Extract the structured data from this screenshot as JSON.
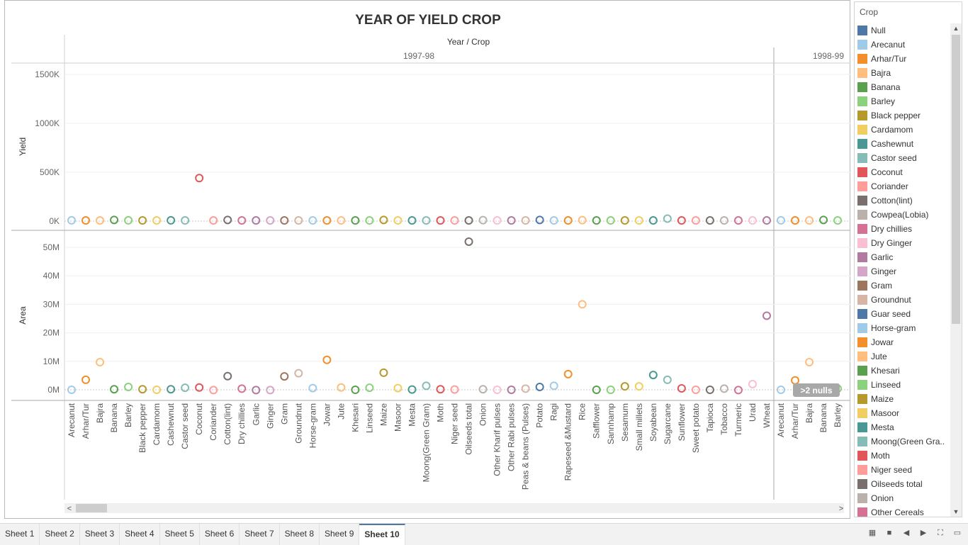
{
  "title": "YEAR OF YIELD CROP",
  "header_label": "Year / Crop",
  "years": [
    {
      "label": "1997-98",
      "crops": [
        "Arecanut",
        "Arhar/Tur",
        "Bajra",
        "Banana",
        "Barley",
        "Black pepper",
        "Cardamom",
        "Cashewnut",
        "Castor seed",
        "Coconut",
        "Coriander",
        "Cotton(lint)",
        "Dry chillies",
        "Garlic",
        "Ginger",
        "Gram",
        "Groundnut",
        "Horse-gram",
        "Jowar",
        "Jute",
        "Khesari",
        "Linseed",
        "Maize",
        "Masoor",
        "Mesta",
        "Moong(Green Gram)",
        "Moth",
        "Niger seed",
        "Oilseeds total",
        "Onion",
        "Other Kharif pulses",
        "Other Rabi pulses",
        "Peas & beans (Pulses)",
        "Potato",
        "Ragi",
        "Rapeseed &Mustard",
        "Rice",
        "Safflower",
        "Sannhamp",
        "Sesamum",
        "Small millets",
        "Soyabean",
        "Sugarcane",
        "Sunflower",
        "Sweet potato",
        "Tapioca",
        "Tobacco",
        "Turmeric",
        "Urad",
        "Wheat"
      ]
    },
    {
      "label": "1998-99",
      "crops": [
        "Arecanut",
        "Arhar/Tur",
        "Bajra",
        "Banana",
        "Barley"
      ]
    }
  ],
  "null_badge": ">2 nulls",
  "chart_data": [
    {
      "type": "scatter",
      "ylabel": "Yield",
      "yticks": [
        "1500K",
        "1000K",
        "500K",
        "0K"
      ],
      "ylim": [
        0,
        1600000
      ],
      "values_1997": [
        8000,
        7000,
        7000,
        12000,
        8000,
        7000,
        7000,
        8000,
        7000,
        440000,
        7000,
        12000,
        7000,
        7000,
        7000,
        7000,
        7000,
        7000,
        7000,
        7000,
        7000,
        7000,
        12000,
        7000,
        7000,
        7000,
        7000,
        7000,
        7000,
        10000,
        7000,
        7000,
        7000,
        12000,
        7000,
        7000,
        10000,
        7000,
        7000,
        7000,
        7000,
        7000,
        25000,
        7000,
        7000,
        7000,
        7000,
        7000,
        7000,
        7000
      ],
      "values_1998": [
        8000,
        7000,
        7000,
        12000,
        7000
      ]
    },
    {
      "type": "scatter",
      "ylabel": "Area",
      "yticks": [
        "50M",
        "40M",
        "30M",
        "20M",
        "10M",
        "0M"
      ],
      "ylim": [
        -3000000,
        55000000
      ],
      "values_1997": [
        0,
        3500000,
        9700000,
        200000,
        1000000,
        200000,
        0,
        200000,
        700000,
        800000,
        -100000,
        4800000,
        400000,
        -100000,
        -100000,
        4700000,
        5800000,
        600000,
        10500000,
        800000,
        0,
        700000,
        6000000,
        600000,
        100000,
        1400000,
        200000,
        100000,
        52000000,
        200000,
        0,
        0,
        400000,
        1000000,
        1400000,
        5500000,
        30000000,
        0,
        0,
        1200000,
        1200000,
        5200000,
        3500000,
        500000,
        0,
        0,
        400000,
        -100000,
        2000000,
        26000000
      ],
      "values_1998": [
        0,
        3300000,
        9700000,
        700000,
        400000
      ]
    }
  ],
  "colors": {
    "Null": "#4e79a7",
    "Arecanut": "#a0cbe8",
    "Arhar/Tur": "#f28e2b",
    "Bajra": "#ffbe7d",
    "Banana": "#59a14f",
    "Barley": "#8cd17d",
    "Black pepper": "#b6992d",
    "Cardamom": "#f1ce63",
    "Cashewnut": "#499894",
    "Castor seed": "#86bcb6",
    "Coconut": "#e15759",
    "Coriander": "#ff9d9a",
    "Cotton(lint)": "#79706e",
    "Cowpea(Lobia)": "#bab0ac",
    "Dry chillies": "#d37295",
    "Dry Ginger": "#fabfd2",
    "Garlic": "#b07aa1",
    "Ginger": "#d4a6c8",
    "Gram": "#9d7660",
    "Groundnut": "#d7b5a6",
    "Guar seed": "#4e79a7",
    "Horse-gram": "#a0cbe8",
    "Jowar": "#f28e2b",
    "Jute": "#ffbe7d",
    "Khesari": "#59a14f",
    "Linseed": "#8cd17d",
    "Maize": "#b6992d",
    "Masoor": "#f1ce63",
    "Mesta": "#499894",
    "Moong(Green Gram)": "#86bcb6",
    "Moth": "#e15759",
    "Niger seed": "#ff9d9a",
    "Oilseeds total": "#79706e",
    "Onion": "#bab0ac",
    "Other Cereals": "#d37295",
    "Other Kharif pulses": "#fabfd2",
    "Other Rabi pulses": "#b07aa1",
    "Peas & beans (Pulses)": "#d7b5a6",
    "Potato": "#4e79a7",
    "Ragi": "#a0cbe8",
    "Rapeseed &Mustard": "#f28e2b",
    "Rice": "#ffbe7d",
    "Safflower": "#59a14f",
    "Sannhamp": "#8cd17d",
    "Sesamum": "#b6992d",
    "Small millets": "#f1ce63",
    "Soyabean": "#499894",
    "Sugarcane": "#86bcb6",
    "Sunflower": "#e15759",
    "Sweet potato": "#ff9d9a",
    "Tapioca": "#79706e",
    "Tobacco": "#bab0ac",
    "Turmeric": "#d37295",
    "Urad": "#fabfd2",
    "Wheat": "#b07aa1"
  },
  "legend": {
    "title": "Crop",
    "items": [
      {
        "label": "Null",
        "color": "#4e79a7"
      },
      {
        "label": "Arecanut",
        "color": "#a0cbe8"
      },
      {
        "label": "Arhar/Tur",
        "color": "#f28e2b"
      },
      {
        "label": "Bajra",
        "color": "#ffbe7d"
      },
      {
        "label": "Banana",
        "color": "#59a14f"
      },
      {
        "label": "Barley",
        "color": "#8cd17d"
      },
      {
        "label": "Black pepper",
        "color": "#b6992d"
      },
      {
        "label": "Cardamom",
        "color": "#f1ce63"
      },
      {
        "label": "Cashewnut",
        "color": "#499894"
      },
      {
        "label": "Castor seed",
        "color": "#86bcb6"
      },
      {
        "label": "Coconut",
        "color": "#e15759"
      },
      {
        "label": "Coriander",
        "color": "#ff9d9a"
      },
      {
        "label": "Cotton(lint)",
        "color": "#79706e"
      },
      {
        "label": "Cowpea(Lobia)",
        "color": "#bab0ac"
      },
      {
        "label": "Dry chillies",
        "color": "#d37295"
      },
      {
        "label": "Dry Ginger",
        "color": "#fabfd2"
      },
      {
        "label": "Garlic",
        "color": "#b07aa1"
      },
      {
        "label": "Ginger",
        "color": "#d4a6c8"
      },
      {
        "label": "Gram",
        "color": "#9d7660"
      },
      {
        "label": "Groundnut",
        "color": "#d7b5a6"
      },
      {
        "label": "Guar seed",
        "color": "#4e79a7"
      },
      {
        "label": "Horse-gram",
        "color": "#a0cbe8"
      },
      {
        "label": "Jowar",
        "color": "#f28e2b"
      },
      {
        "label": "Jute",
        "color": "#ffbe7d"
      },
      {
        "label": "Khesari",
        "color": "#59a14f"
      },
      {
        "label": "Linseed",
        "color": "#8cd17d"
      },
      {
        "label": "Maize",
        "color": "#b6992d"
      },
      {
        "label": "Masoor",
        "color": "#f1ce63"
      },
      {
        "label": "Mesta",
        "color": "#499894"
      },
      {
        "label": "Moong(Green Gra..",
        "color": "#86bcb6"
      },
      {
        "label": "Moth",
        "color": "#e15759"
      },
      {
        "label": "Niger seed",
        "color": "#ff9d9a"
      },
      {
        "label": "Oilseeds total",
        "color": "#79706e"
      },
      {
        "label": "Onion",
        "color": "#bab0ac"
      },
      {
        "label": "Other Cereals",
        "color": "#d37295"
      }
    ]
  },
  "tabs": [
    {
      "label": "Sheet 1"
    },
    {
      "label": "Sheet 2"
    },
    {
      "label": "Sheet 3"
    },
    {
      "label": "Sheet 4"
    },
    {
      "label": "Sheet 5"
    },
    {
      "label": "Sheet 6"
    },
    {
      "label": "Sheet 7"
    },
    {
      "label": "Sheet 8"
    },
    {
      "label": "Sheet 9"
    },
    {
      "label": "Sheet 10",
      "active": true
    }
  ]
}
